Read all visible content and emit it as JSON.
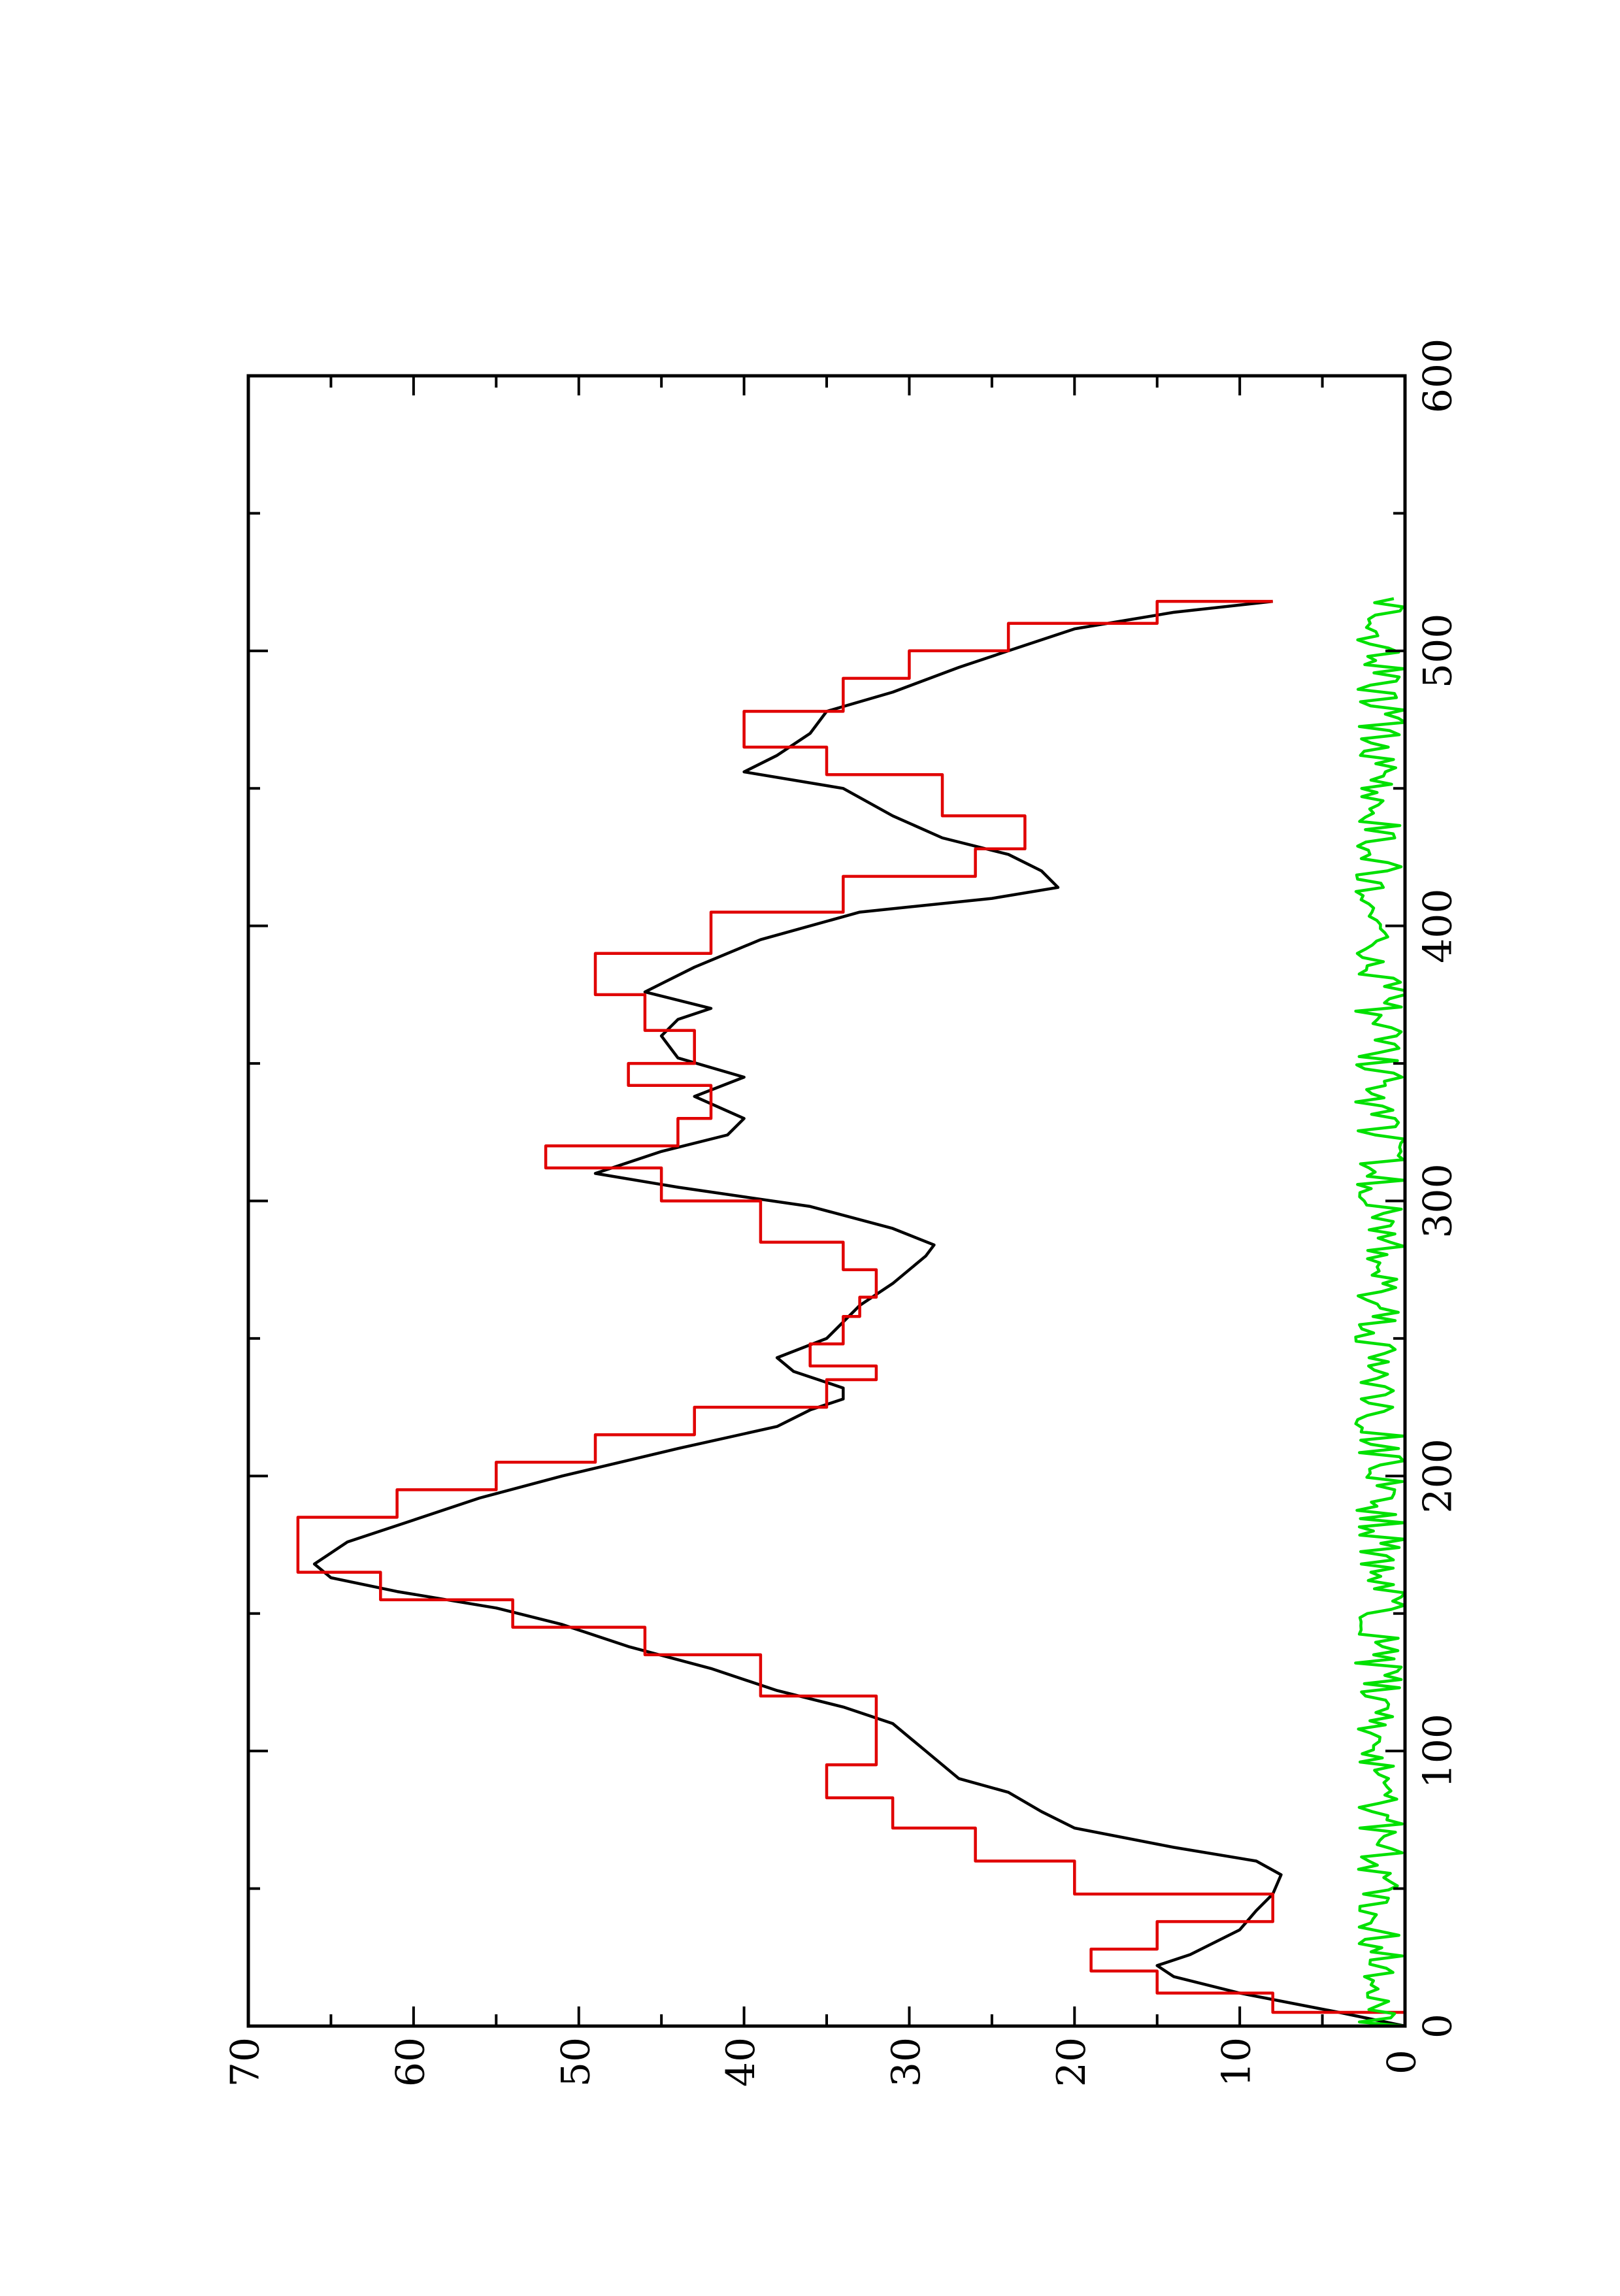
{
  "chart_data": {
    "type": "line",
    "title": "",
    "xlabel": "",
    "ylabel": "",
    "orientation": "rotated-90-ccw",
    "xlim": [
      0,
      600
    ],
    "ylim": [
      0,
      70
    ],
    "x_ticks": [
      0,
      100,
      200,
      300,
      400,
      500,
      600
    ],
    "x_tick_labels": [
      "0",
      "100",
      "200",
      "300",
      "400",
      "500",
      "600"
    ],
    "x_minor_ticks": [
      50,
      150,
      250,
      350,
      450,
      550
    ],
    "y_ticks": [
      0,
      10,
      20,
      30,
      40,
      50,
      60,
      70
    ],
    "y_tick_labels": [
      "0",
      "10",
      "20",
      "30",
      "40",
      "50",
      "60",
      "70"
    ],
    "y_minor_ticks": [
      5,
      15,
      25,
      35,
      45,
      55,
      65
    ],
    "grid": false,
    "legend": "none",
    "series": [
      {
        "color": "#000000",
        "style": "smooth",
        "x": [
          0,
          5,
          12,
          18,
          22,
          26,
          35,
          42,
          48,
          55,
          60,
          65,
          72,
          78,
          85,
          90,
          100,
          110,
          116,
          122,
          130,
          138,
          146,
          152,
          158,
          163,
          168,
          176,
          184,
          192,
          200,
          210,
          218,
          224,
          228,
          232,
          238,
          243,
          250,
          256,
          262,
          270,
          280,
          284,
          290,
          298,
          305,
          310,
          318,
          324,
          330,
          338,
          345,
          352,
          360,
          366,
          370,
          376,
          385,
          395,
          405,
          410,
          414,
          420,
          426,
          432,
          440,
          450,
          456,
          462,
          470,
          478,
          485,
          494,
          500,
          508,
          514,
          518
        ],
        "y": [
          0,
          4,
          10,
          14,
          15,
          13,
          10,
          9,
          8,
          7.5,
          9,
          14,
          20,
          22,
          24,
          27,
          29,
          31,
          34,
          38,
          42,
          47,
          51,
          55,
          61,
          65,
          66,
          64,
          60,
          56,
          51,
          44,
          38,
          36,
          34,
          34,
          37,
          38,
          35,
          34,
          33,
          31,
          29,
          28.5,
          31,
          36,
          44,
          49,
          45,
          41,
          40,
          43,
          40,
          44,
          45,
          44,
          42,
          46,
          43,
          39,
          33,
          25,
          21,
          22,
          24,
          28,
          31,
          34,
          40,
          38,
          36,
          35,
          31,
          27,
          24,
          20,
          14,
          8
        ]
      },
      {
        "color": "#e00000",
        "style": "step",
        "x": [
          0,
          5,
          12,
          20,
          28,
          38,
          48,
          60,
          72,
          83,
          95,
          120,
          135,
          145,
          155,
          165,
          175,
          185,
          195,
          205,
          215,
          225,
          235,
          240,
          248,
          258,
          265,
          275,
          285,
          300,
          312,
          320,
          330,
          342,
          350,
          362,
          375,
          390,
          405,
          418,
          428,
          440,
          455,
          465,
          478,
          490,
          500,
          510,
          518
        ],
        "y": [
          0,
          8,
          15,
          19,
          15,
          8,
          20,
          26,
          31,
          35,
          32,
          39,
          46,
          54,
          62,
          67,
          67,
          61,
          55,
          49,
          43,
          35,
          32,
          36,
          34,
          33,
          32,
          34,
          39,
          45,
          52,
          44,
          42,
          47,
          43,
          46,
          49,
          42,
          34,
          26,
          23,
          28,
          35,
          40,
          34,
          30,
          24,
          15,
          8
        ]
      },
      {
        "color": "#00e000",
        "style": "noise",
        "amplitude": 3,
        "xlim": [
          0,
          520
        ]
      }
    ]
  }
}
